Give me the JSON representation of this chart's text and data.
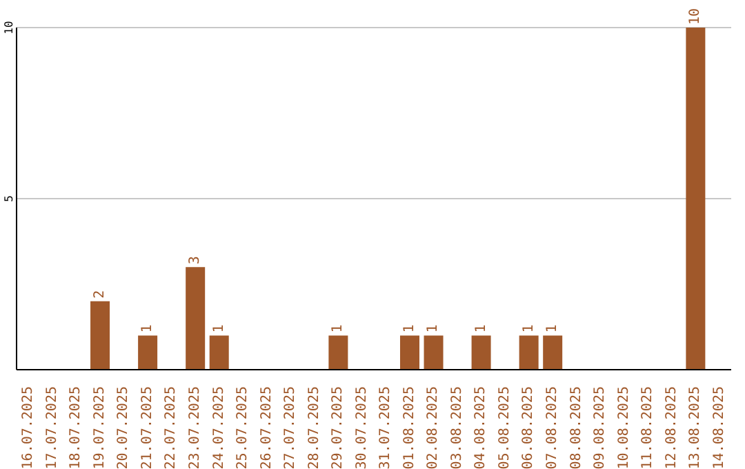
{
  "chart_data": {
    "type": "bar",
    "categories": [
      "16.07.2025",
      "17.07.2025",
      "18.07.2025",
      "19.07.2025",
      "20.07.2025",
      "21.07.2025",
      "22.07.2025",
      "23.07.2025",
      "24.07.2025",
      "25.07.2025",
      "26.07.2025",
      "27.07.2025",
      "28.07.2025",
      "29.07.2025",
      "30.07.2025",
      "31.07.2025",
      "01.08.2025",
      "02.08.2025",
      "03.08.2025",
      "04.08.2025",
      "05.08.2025",
      "06.08.2025",
      "07.08.2025",
      "08.08.2025",
      "09.08.2025",
      "10.08.2025",
      "11.08.2025",
      "12.08.2025",
      "13.08.2025",
      "14.08.2025"
    ],
    "values": [
      0,
      0,
      0,
      2,
      0,
      1,
      0,
      3,
      1,
      0,
      0,
      0,
      0,
      1,
      0,
      0,
      1,
      1,
      0,
      1,
      0,
      1,
      1,
      0,
      0,
      0,
      0,
      0,
      10,
      0
    ],
    "value_labels": [
      null,
      null,
      null,
      "2",
      null,
      "1",
      null,
      "3",
      "1",
      null,
      null,
      null,
      null,
      "1",
      null,
      null,
      "1",
      "1",
      null,
      "1",
      null,
      "1",
      "1",
      null,
      null,
      null,
      null,
      null,
      "10",
      null
    ],
    "color": "#a0582a",
    "ylim": [
      0,
      10
    ],
    "yticks": [
      {
        "value": 0,
        "label": null
      },
      5,
      10
    ],
    "grid": "y"
  }
}
